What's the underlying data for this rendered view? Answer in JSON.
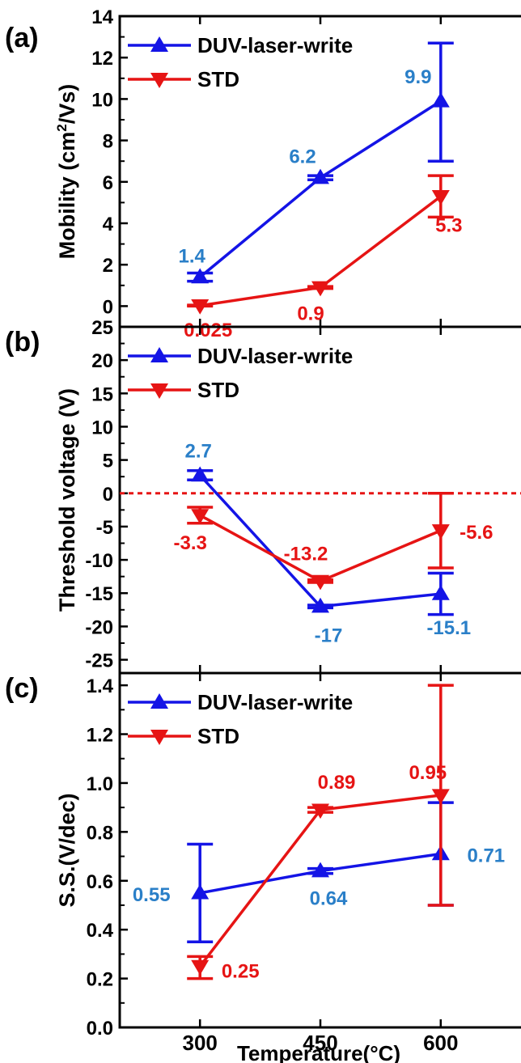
{
  "colors": {
    "duv": "#1414e6",
    "std": "#e61414",
    "duv_label": "#2a7fc8",
    "std_label": "#e61414",
    "zero_line": "#e61414",
    "axis": "#000000"
  },
  "x_axis": {
    "label": "Temperature(°C)",
    "ticks": [
      "300",
      "450",
      "600"
    ],
    "values": [
      300,
      450,
      600
    ]
  },
  "chart_data": [
    {
      "type": "line",
      "panel_label": "(a)",
      "ylabel": "Mobility (cm²/Vs)",
      "ylabel_main": "Mobility (cm",
      "ylabel_sup": "2",
      "ylabel_tail": "/Vs)",
      "ylim": [
        -1,
        14
      ],
      "yticks": [
        0,
        2,
        4,
        6,
        8,
        10,
        12,
        14
      ],
      "ytick_labels": [
        "0",
        "2",
        "4",
        "6",
        "8",
        "10",
        "12",
        "14"
      ],
      "legend_position": "top-left",
      "x": [
        300,
        450,
        600
      ],
      "series": [
        {
          "name": "DUV-laser-write",
          "marker": "triangle-up",
          "values": [
            1.4,
            6.2,
            9.9
          ],
          "err_low": [
            1.2,
            6.1,
            7.0
          ],
          "err_high": [
            1.6,
            6.3,
            12.7
          ],
          "labels": [
            "1.4",
            "6.2",
            "9.9"
          ]
        },
        {
          "name": "STD",
          "marker": "triangle-down",
          "values": [
            0.025,
            0.9,
            5.3
          ],
          "err_low": [
            0.0,
            0.85,
            4.3
          ],
          "err_high": [
            0.05,
            0.95,
            6.3
          ],
          "labels": [
            "0.025",
            "0.9",
            "5.3"
          ]
        }
      ]
    },
    {
      "type": "line",
      "panel_label": "(b)",
      "ylabel": "Threshold voltage (V)",
      "ylim": [
        -27,
        25
      ],
      "yticks": [
        -25,
        -20,
        -15,
        -10,
        -5,
        0,
        5,
        10,
        15,
        20,
        25
      ],
      "ytick_labels": [
        "-25",
        "-20",
        "-15",
        "-10",
        "-5",
        "0",
        "5",
        "10",
        "15",
        "20",
        "25"
      ],
      "reference_line": 0,
      "legend_position": "top-left",
      "x": [
        300,
        450,
        600
      ],
      "series": [
        {
          "name": "DUV-laser-write",
          "marker": "triangle-up",
          "values": [
            2.7,
            -17,
            -15.1
          ],
          "err_low": [
            2.0,
            -17.2,
            -18.2
          ],
          "err_high": [
            3.4,
            -16.8,
            -12.0
          ],
          "labels": [
            "2.7",
            "-17",
            "-15.1"
          ]
        },
        {
          "name": "STD",
          "marker": "triangle-down",
          "values": [
            -3.3,
            -13.2,
            -5.6
          ],
          "err_low": [
            -4.5,
            -13.4,
            -11.2
          ],
          "err_high": [
            -2.1,
            -13.0,
            0.0
          ],
          "labels": [
            "-3.3",
            "-13.2",
            "-5.6"
          ]
        }
      ]
    },
    {
      "type": "line",
      "panel_label": "(c)",
      "ylabel": "S.S.(V/dec)",
      "ylim": [
        0,
        1.45
      ],
      "yticks": [
        0.0,
        0.2,
        0.4,
        0.6,
        0.8,
        1.0,
        1.2,
        1.4
      ],
      "ytick_labels": [
        "0.0",
        "0.2",
        "0.4",
        "0.6",
        "0.8",
        "1.0",
        "1.2",
        "1.4"
      ],
      "legend_position": "top-left",
      "x": [
        300,
        450,
        600
      ],
      "series": [
        {
          "name": "DUV-laser-write",
          "marker": "triangle-up",
          "values": [
            0.55,
            0.64,
            0.71
          ],
          "err_low": [
            0.35,
            0.63,
            0.5
          ],
          "err_high": [
            0.75,
            0.65,
            0.92
          ],
          "labels": [
            "0.55",
            "0.64",
            "0.71"
          ]
        },
        {
          "name": "STD",
          "marker": "triangle-down",
          "values": [
            0.25,
            0.89,
            0.95
          ],
          "err_low": [
            0.2,
            0.88,
            0.5
          ],
          "err_high": [
            0.29,
            0.9,
            1.4
          ],
          "labels": [
            "0.25",
            "0.89",
            "0.95"
          ]
        }
      ]
    }
  ]
}
